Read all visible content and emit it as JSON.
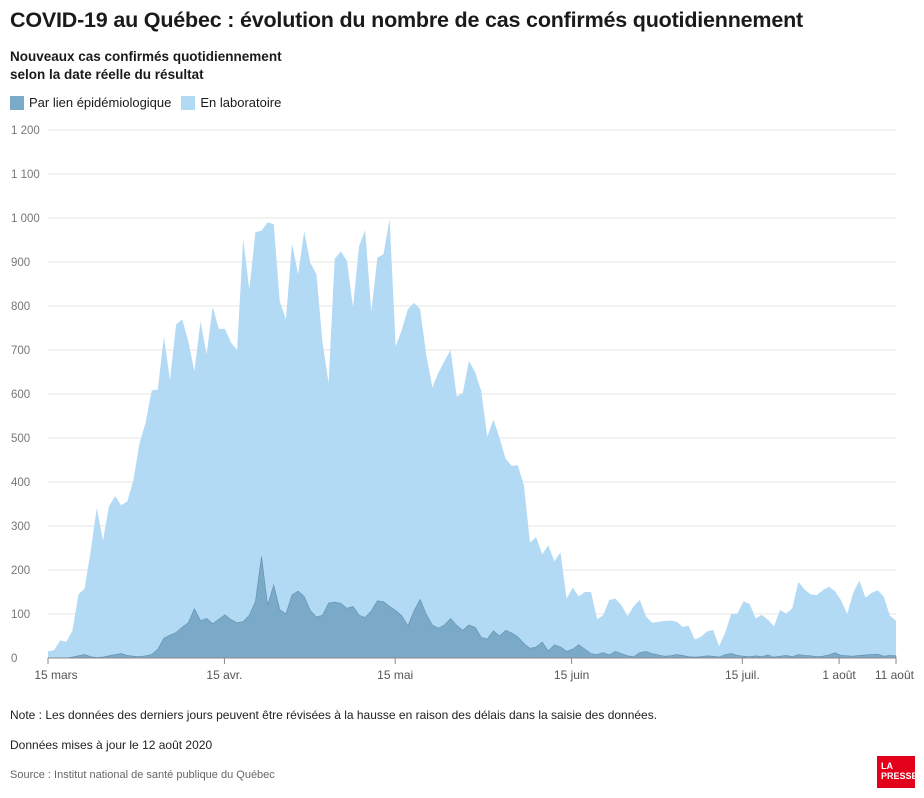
{
  "header": {
    "title": "COVID-19 au Québec : évolution du nombre de cas confirmés quotidiennement",
    "subtitle_line1": "Nouveaux cas confirmés quotidiennement",
    "subtitle_line2": "selon la date réelle du résultat"
  },
  "legend": {
    "epi_label": "Par lien épidémiologique",
    "lab_label": "En laboratoire"
  },
  "colors": {
    "epi": "#7aaac7",
    "lab": "#b3daf4",
    "grid": "#e4e4e4",
    "axis": "#888888",
    "logo": "#e2001a"
  },
  "footer": {
    "note": "Note : Les données des derniers jours peuvent être révisées à la hausse en raison des délais dans la saisie des données.",
    "updated": "Données mises à jour le 12 août 2020",
    "source": "Source : Institut national de santé publique du Québec",
    "logo_line1": "LA",
    "logo_line2": "PRESSE"
  },
  "chart_data": {
    "type": "area",
    "stacked": true,
    "x_start": "2020-03-15",
    "x_end": "2020-08-11",
    "x_ticks": [
      "15 mars",
      "15 avr.",
      "15 mai",
      "15 juin",
      "15 juil.",
      "1 août",
      "11 août"
    ],
    "y_ticks": [
      "0",
      "100",
      "200",
      "300",
      "400",
      "500",
      "600",
      "700",
      "800",
      "900",
      "1 000",
      "1 100",
      "1 200"
    ],
    "ylim": [
      0,
      1200
    ],
    "grid": true,
    "legend_position": "top-left",
    "series": [
      {
        "name": "Par lien épidémiologique",
        "values": [
          0,
          0,
          0,
          0,
          2,
          5,
          8,
          3,
          1,
          2,
          5,
          8,
          10,
          6,
          4,
          3,
          5,
          8,
          20,
          45,
          52,
          58,
          70,
          80,
          112,
          85,
          90,
          78,
          88,
          98,
          87,
          80,
          83,
          97,
          128,
          231,
          120,
          166,
          110,
          100,
          143,
          152,
          140,
          108,
          93,
          97,
          125,
          127,
          124,
          113,
          117,
          97,
          92,
          107,
          130,
          128,
          117,
          108,
          96,
          73,
          107,
          133,
          100,
          75,
          68,
          75,
          90,
          74,
          63,
          75,
          70,
          47,
          43,
          62,
          50,
          63,
          57,
          48,
          33,
          22,
          25,
          36,
          16,
          30,
          25,
          15,
          20,
          30,
          20,
          10,
          8,
          12,
          7,
          15,
          10,
          5,
          3,
          12,
          15,
          10,
          7,
          4,
          5,
          8,
          6,
          3,
          2,
          3,
          5,
          4,
          2,
          8,
          10,
          6,
          4,
          3,
          5,
          3,
          7,
          2,
          4,
          6,
          3,
          8,
          6,
          5,
          3,
          4,
          7,
          12,
          6,
          5,
          4,
          6,
          7,
          8,
          9,
          4,
          6,
          5
        ]
      },
      {
        "name": "En laboratoire",
        "values": [
          15,
          18,
          40,
          37,
          60,
          140,
          150,
          240,
          340,
          265,
          340,
          360,
          337,
          350,
          400,
          485,
          530,
          600,
          590,
          685,
          580,
          700,
          700,
          640,
          540,
          680,
          600,
          720,
          660,
          650,
          630,
          620,
          870,
          740,
          840,
          740,
          870,
          820,
          700,
          670,
          800,
          720,
          830,
          790,
          780,
          620,
          500,
          780,
          800,
          790,
          680,
          840,
          880,
          680,
          780,
          790,
          880,
          600,
          650,
          720,
          700,
          660,
          590,
          540,
          580,
          600,
          610,
          520,
          540,
          600,
          580,
          560,
          460,
          480,
          450,
          390,
          380,
          390,
          360,
          240,
          250,
          200,
          240,
          190,
          215,
          120,
          140,
          110,
          130,
          140,
          80,
          85,
          125,
          120,
          110,
          90,
          115,
          120,
          80,
          70,
          75,
          80,
          80,
          75,
          65,
          70,
          40,
          45,
          55,
          60,
          25,
          50,
          90,
          95,
          125,
          120,
          85,
          95,
          80,
          70,
          105,
          95,
          110,
          165,
          150,
          140,
          140,
          150,
          155,
          140,
          125,
          95,
          145,
          170,
          130,
          140,
          145,
          135,
          90,
          80
        ]
      }
    ]
  }
}
